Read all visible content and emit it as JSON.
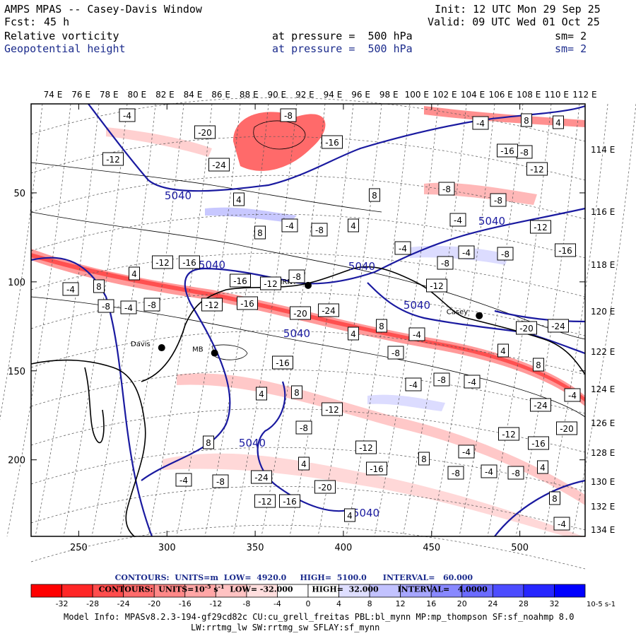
{
  "header": {
    "title": "AMPS MPAS -- Casey-Davis Window",
    "init": "Init: 12 UTC Mon 29 Sep 25",
    "fcst_label": "Fcst:",
    "fcst_value": "45 h",
    "valid": "Valid: 09 UTC Wed 01 Oct 25",
    "field1": "Relative vorticity",
    "field1_level": "at pressure =  500 hPa",
    "field1_sm": "sm= 2",
    "field2": "Geopotential height",
    "field2_level": "at pressure =  500 hPa",
    "field2_sm": "sm= 2"
  },
  "chart_data": {
    "type": "heatmap",
    "x_ticks": [
      250,
      300,
      350,
      400,
      450,
      500
    ],
    "xlim": [
      223,
      537
    ],
    "y_ticks": [
      50,
      100,
      150,
      200
    ],
    "ylim": [
      0,
      243
    ],
    "top_longitudes": [
      "74 E",
      "76 E",
      "78 E",
      "80 E",
      "82 E",
      "84 E",
      "86 E",
      "88 E",
      "90 E",
      "92 E",
      "94 E",
      "96 E",
      "98 E",
      "100 E",
      "102 E",
      "104 E",
      "106 E",
      "108 E",
      "110 E",
      "112 E"
    ],
    "right_longitudes": [
      "114 E",
      "116 E",
      "118 E",
      "120 E",
      "122 E",
      "124 E",
      "126 E",
      "128 E",
      "130 E",
      "132 E",
      "134 E"
    ],
    "stations": [
      {
        "name": "Davis",
        "x": 297,
        "y": 137
      },
      {
        "name": "Casey",
        "x": 477,
        "y": 119
      },
      {
        "name": "MRNY",
        "x": 380,
        "y": 102
      },
      {
        "name": "MB",
        "x": 327,
        "y": 140
      }
    ],
    "height_contour_labels": [
      "5040",
      "5040",
      "5040",
      "5040",
      "5040",
      "5040",
      "5040",
      "5040"
    ],
    "vorticity_labels": [
      "-4",
      "-8",
      "-12",
      "-16",
      "-20",
      "-24",
      "4",
      "8",
      "-4",
      "-8",
      "-12",
      "-16",
      "4",
      "8",
      "-4",
      "-8"
    ],
    "contours_height": {
      "units": "m",
      "low": "4920.0",
      "high": "5100.0",
      "interval": "60.000"
    },
    "contours_vort": {
      "units": "10**-5 s**-1",
      "low": "-32.000",
      "high": "32.000",
      "interval": "4.0000"
    },
    "colorbar": {
      "ticks": [
        "-32",
        "-28",
        "-24",
        "-20",
        "-16",
        "-12",
        "-8",
        "-4",
        "0",
        "4",
        "8",
        "12",
        "16",
        "20",
        "24",
        "28",
        "32"
      ],
      "unit": "10-5 s-1",
      "colors": [
        "#ff0000",
        "#ff2626",
        "#ff4c4c",
        "#ff6b6b",
        "#ff8888",
        "#ffa6a6",
        "#ffc2c2",
        "#ffdede",
        "#ffffff",
        "#ffffff",
        "#dedeff",
        "#c2c2ff",
        "#a6a6ff",
        "#8888ff",
        "#6b6bff",
        "#4c4cff",
        "#2626ff",
        "#0000ff"
      ]
    }
  },
  "footer": {
    "c1_label": "CONTOURS:  UNITS=m",
    "c1_low": "LOW=  4920.0",
    "c1_high": "HIGH=  5100.0",
    "c1_int": "INTERVAL=   60.000",
    "c2_label": "CONTOURS:  UNITS=10",
    "c2_exp": "-5",
    "c2_s": "s",
    "c2_sexp": "-1",
    "c2_low": "LOW= -32.000",
    "c2_high": "HIGH=  32.000",
    "c2_int": "INTERVAL=   4.0000",
    "model_info": "Model Info: MPASv8.2.3-194-gf29cd82c CU:cu_grell_freitas PBL:bl_mynn MP:mp_thompson SF:sf_noahmp 8.0",
    "model_info2": "LW:rrtmg_lw SW:rrtmg_sw SFLAY:sf_mynn"
  }
}
